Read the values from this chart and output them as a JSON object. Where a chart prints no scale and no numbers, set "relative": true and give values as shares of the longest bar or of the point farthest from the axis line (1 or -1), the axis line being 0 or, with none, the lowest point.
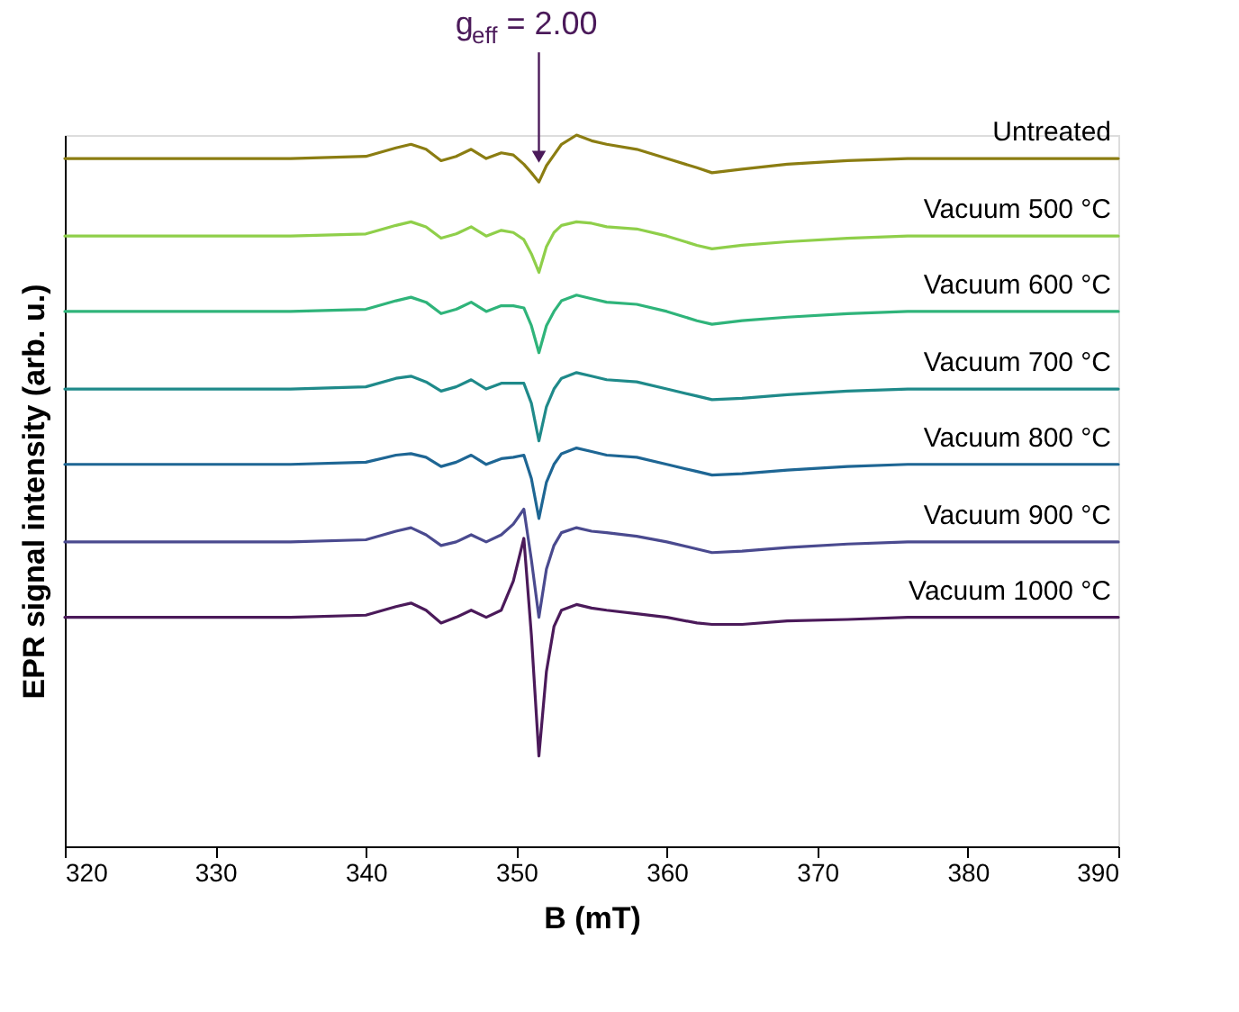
{
  "chart_data": {
    "type": "line",
    "relative": true,
    "xlabel": "B (mT)",
    "ylabel": "EPR signal intensity (arb. u.)",
    "xlim": [
      320,
      390
    ],
    "xticks": [
      320,
      330,
      340,
      350,
      360,
      370,
      380,
      390
    ],
    "grid": false,
    "legend": false,
    "marker": "none",
    "line_style": "solid",
    "x": [
      320,
      325,
      330,
      335,
      340,
      342,
      343,
      344,
      345,
      346,
      347,
      348,
      349,
      349.8,
      350.5,
      351,
      351.5,
      352,
      352.5,
      353,
      354,
      355,
      356,
      358,
      360,
      362,
      363,
      365,
      368,
      372,
      376,
      380,
      385,
      390
    ],
    "series": [
      {
        "name": "Untreated",
        "color": "#8b7d12",
        "values": [
          0.967,
          0.967,
          0.967,
          0.967,
          0.97,
          0.982,
          0.987,
          0.98,
          0.964,
          0.97,
          0.98,
          0.967,
          0.975,
          0.972,
          0.959,
          0.947,
          0.934,
          0.957,
          0.972,
          0.987,
          1.0,
          0.992,
          0.987,
          0.98,
          0.967,
          0.954,
          0.947,
          0.952,
          0.959,
          0.964,
          0.967,
          0.967,
          0.967,
          0.967
        ]
      },
      {
        "name": "Vacuum   500 °C",
        "color": "#8fcf4a",
        "values": [
          0.858,
          0.858,
          0.858,
          0.858,
          0.861,
          0.873,
          0.878,
          0.871,
          0.855,
          0.861,
          0.871,
          0.858,
          0.866,
          0.863,
          0.853,
          0.833,
          0.807,
          0.843,
          0.863,
          0.873,
          0.878,
          0.876,
          0.871,
          0.868,
          0.858,
          0.845,
          0.84,
          0.845,
          0.85,
          0.855,
          0.858,
          0.858,
          0.858,
          0.858
        ]
      },
      {
        "name": "Vacuum   600 °C",
        "color": "#2fb47a",
        "values": [
          0.752,
          0.752,
          0.752,
          0.752,
          0.755,
          0.767,
          0.772,
          0.765,
          0.749,
          0.755,
          0.765,
          0.752,
          0.76,
          0.76,
          0.757,
          0.732,
          0.694,
          0.732,
          0.752,
          0.767,
          0.775,
          0.77,
          0.765,
          0.762,
          0.752,
          0.739,
          0.734,
          0.739,
          0.744,
          0.749,
          0.752,
          0.752,
          0.752,
          0.752
        ]
      },
      {
        "name": "Vacuum   700 °C",
        "color": "#1f8a8a",
        "values": [
          0.643,
          0.643,
          0.643,
          0.643,
          0.646,
          0.658,
          0.661,
          0.653,
          0.64,
          0.646,
          0.656,
          0.643,
          0.651,
          0.651,
          0.651,
          0.623,
          0.57,
          0.618,
          0.643,
          0.658,
          0.666,
          0.661,
          0.656,
          0.653,
          0.643,
          0.633,
          0.628,
          0.63,
          0.635,
          0.64,
          0.643,
          0.643,
          0.643,
          0.643
        ]
      },
      {
        "name": "Vacuum   800 °C",
        "color": "#1e6694",
        "values": [
          0.537,
          0.537,
          0.537,
          0.537,
          0.54,
          0.55,
          0.552,
          0.547,
          0.534,
          0.54,
          0.55,
          0.537,
          0.545,
          0.547,
          0.55,
          0.517,
          0.461,
          0.512,
          0.537,
          0.552,
          0.56,
          0.555,
          0.55,
          0.547,
          0.537,
          0.527,
          0.522,
          0.524,
          0.529,
          0.534,
          0.537,
          0.537,
          0.537,
          0.537
        ]
      },
      {
        "name": "Vacuum   900 °C",
        "color": "#4a4a8f",
        "values": [
          0.428,
          0.428,
          0.428,
          0.428,
          0.431,
          0.443,
          0.448,
          0.438,
          0.423,
          0.428,
          0.438,
          0.428,
          0.438,
          0.453,
          0.474,
          0.403,
          0.322,
          0.39,
          0.423,
          0.441,
          0.448,
          0.443,
          0.441,
          0.436,
          0.428,
          0.418,
          0.413,
          0.415,
          0.42,
          0.425,
          0.428,
          0.428,
          0.428,
          0.428
        ]
      },
      {
        "name": "Vacuum 1000 °C",
        "color": "#4b1a5a",
        "values": [
          0.322,
          0.322,
          0.322,
          0.322,
          0.325,
          0.337,
          0.342,
          0.332,
          0.314,
          0.322,
          0.332,
          0.322,
          0.332,
          0.373,
          0.433,
          0.297,
          0.127,
          0.246,
          0.309,
          0.332,
          0.34,
          0.335,
          0.332,
          0.327,
          0.322,
          0.314,
          0.312,
          0.312,
          0.317,
          0.319,
          0.322,
          0.322,
          0.322,
          0.322
        ]
      }
    ],
    "annotations": [
      "g$_{eff}$ = 2.00"
    ]
  }
}
